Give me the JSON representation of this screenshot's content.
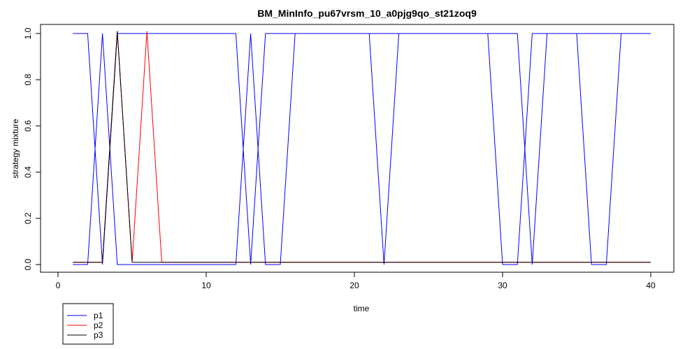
{
  "chart_data": {
    "type": "line",
    "title": "BM_MinInfo_pu67vrsm_10_a0pjg9qo_st21zoq9",
    "xlabel": "time",
    "ylabel": "strategy mixture",
    "xlim": [
      0,
      40
    ],
    "ylim": [
      0,
      1
    ],
    "x_ticks": [
      "0",
      "10",
      "20",
      "30",
      "40"
    ],
    "y_ticks": [
      "0.0",
      "0.2",
      "0.4",
      "0.6",
      "0.8",
      "1.0"
    ],
    "x": [
      1,
      2,
      3,
      4,
      5,
      6,
      7,
      8,
      9,
      10,
      11,
      12,
      13,
      14,
      15,
      16,
      17,
      18,
      19,
      20,
      21,
      22,
      23,
      24,
      25,
      26,
      27,
      28,
      29,
      30,
      31,
      32,
      33,
      34,
      35,
      36,
      37,
      38,
      39,
      40
    ],
    "series": [
      {
        "name": "p1",
        "color": "#0000ff",
        "values": [
          0,
          0,
          1,
          0,
          0,
          0,
          0,
          0,
          0,
          0,
          0,
          0,
          1,
          0,
          0,
          1,
          1,
          1,
          1,
          1,
          1,
          0,
          1,
          1,
          1,
          1,
          1,
          1,
          1,
          0,
          0,
          1,
          1,
          1,
          1,
          0,
          0,
          1,
          1,
          1
        ]
      },
      {
        "name": "p1",
        "color": "#0000ff",
        "values": [
          1,
          1,
          0,
          1,
          1,
          1,
          1,
          1,
          1,
          1,
          1,
          1,
          0,
          1,
          1,
          1,
          1,
          1,
          1,
          1,
          1,
          1,
          1,
          1,
          1,
          1,
          1,
          1,
          1,
          1,
          1,
          0,
          1,
          1,
          1,
          1,
          1,
          1,
          1,
          1
        ]
      },
      {
        "name": "p2",
        "color": "#ff0000",
        "values": [
          0.01,
          0.01,
          0.01,
          1.01,
          0.01,
          1.01,
          0.01,
          0.01,
          0.01,
          0.01,
          0.01,
          0.01,
          0.01,
          0.01,
          0.01,
          0.01,
          0.01,
          0.01,
          0.01,
          0.01,
          0.01,
          0.01,
          0.01,
          0.01,
          0.01,
          0.01,
          0.01,
          0.01,
          0.01,
          0.01,
          0.01,
          0.01,
          0.01,
          0.01,
          0.01,
          0.01,
          0.01,
          0.01,
          0.01,
          0.01
        ]
      },
      {
        "name": "p3",
        "color": "#000000",
        "values": [
          0.01,
          0.01,
          0.01,
          1.01,
          0.01,
          0.01,
          0.01,
          0.01,
          0.01,
          0.01,
          0.01,
          0.01,
          0.01,
          0.01,
          0.01,
          0.01,
          0.01,
          0.01,
          0.01,
          0.01,
          0.01,
          0.01,
          0.01,
          0.01,
          0.01,
          0.01,
          0.01,
          0.01,
          0.01,
          0.01,
          0.01,
          0.01,
          0.01,
          0.01,
          0.01,
          0.01,
          0.01,
          0.01,
          0.01,
          0.01
        ]
      }
    ],
    "legend": {
      "placement": "bottom-left",
      "entries": [
        {
          "label": "p1",
          "color": "#0000ff"
        },
        {
          "label": "p2",
          "color": "#ff0000"
        },
        {
          "label": "p3",
          "color": "#000000"
        }
      ]
    },
    "grid": false
  }
}
